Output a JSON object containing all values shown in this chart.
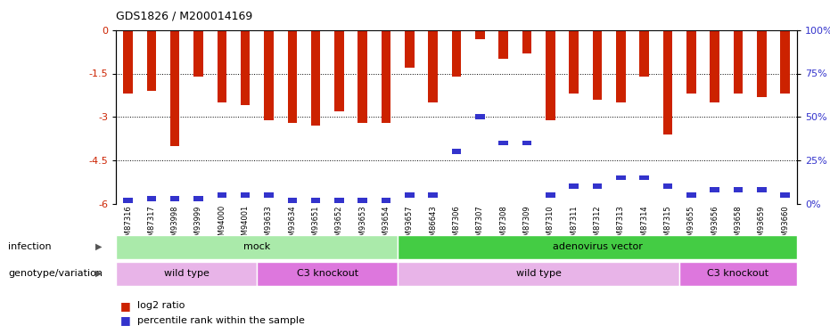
{
  "title": "GDS1826 / M200014169",
  "samples": [
    "GSM87316",
    "GSM87317",
    "GSM93998",
    "GSM93999",
    "GSM94000",
    "GSM94001",
    "GSM93633",
    "GSM93634",
    "GSM93651",
    "GSM93652",
    "GSM93653",
    "GSM93654",
    "GSM93657",
    "GSM86643",
    "GSM87306",
    "GSM87307",
    "GSM87308",
    "GSM87309",
    "GSM87310",
    "GSM87311",
    "GSM87312",
    "GSM87313",
    "GSM87314",
    "GSM87315",
    "GSM93655",
    "GSM93656",
    "GSM93658",
    "GSM93659",
    "GSM93660"
  ],
  "log2_ratio": [
    -2.2,
    -2.1,
    -4.0,
    -1.6,
    -2.5,
    -2.6,
    -3.1,
    -3.2,
    -3.3,
    -2.8,
    -3.2,
    -3.2,
    -1.3,
    -2.5,
    -1.6,
    -0.3,
    -1.0,
    -0.8,
    -3.1,
    -2.2,
    -2.4,
    -2.5,
    -1.6,
    -3.6,
    -2.2,
    -2.5,
    -2.2,
    -2.3,
    -2.2
  ],
  "percentile_rank": [
    2,
    3,
    3,
    3,
    5,
    5,
    5,
    2,
    2,
    2,
    2,
    2,
    5,
    5,
    30,
    50,
    35,
    35,
    5,
    10,
    10,
    15,
    15,
    10,
    5,
    8,
    8,
    8,
    5
  ],
  "bar_color": "#cc2200",
  "percentile_color": "#3333cc",
  "ylim_left": [
    -6,
    0
  ],
  "yticks_left": [
    0,
    -1.5,
    -3.0,
    -4.5,
    -6.0
  ],
  "ytick_labels_left": [
    "0",
    "-1.5",
    "-3",
    "-4.5",
    "-6"
  ],
  "yticks_right": [
    0,
    25,
    50,
    75,
    100
  ],
  "infection_groups": [
    {
      "label": "mock",
      "start": 0,
      "end": 12,
      "color": "#aaeaaa"
    },
    {
      "label": "adenovirus vector",
      "start": 12,
      "end": 29,
      "color": "#44cc44"
    }
  ],
  "genotype_groups": [
    {
      "label": "wild type",
      "start": 0,
      "end": 6,
      "color": "#e8b4e8"
    },
    {
      "label": "C3 knockout",
      "start": 6,
      "end": 12,
      "color": "#dd77dd"
    },
    {
      "label": "wild type",
      "start": 12,
      "end": 24,
      "color": "#e8b4e8"
    },
    {
      "label": "C3 knockout",
      "start": 24,
      "end": 29,
      "color": "#dd77dd"
    }
  ],
  "infection_label": "infection",
  "genotype_label": "genotype/variation",
  "legend_log2_color": "#cc2200",
  "legend_pct_color": "#3333cc"
}
